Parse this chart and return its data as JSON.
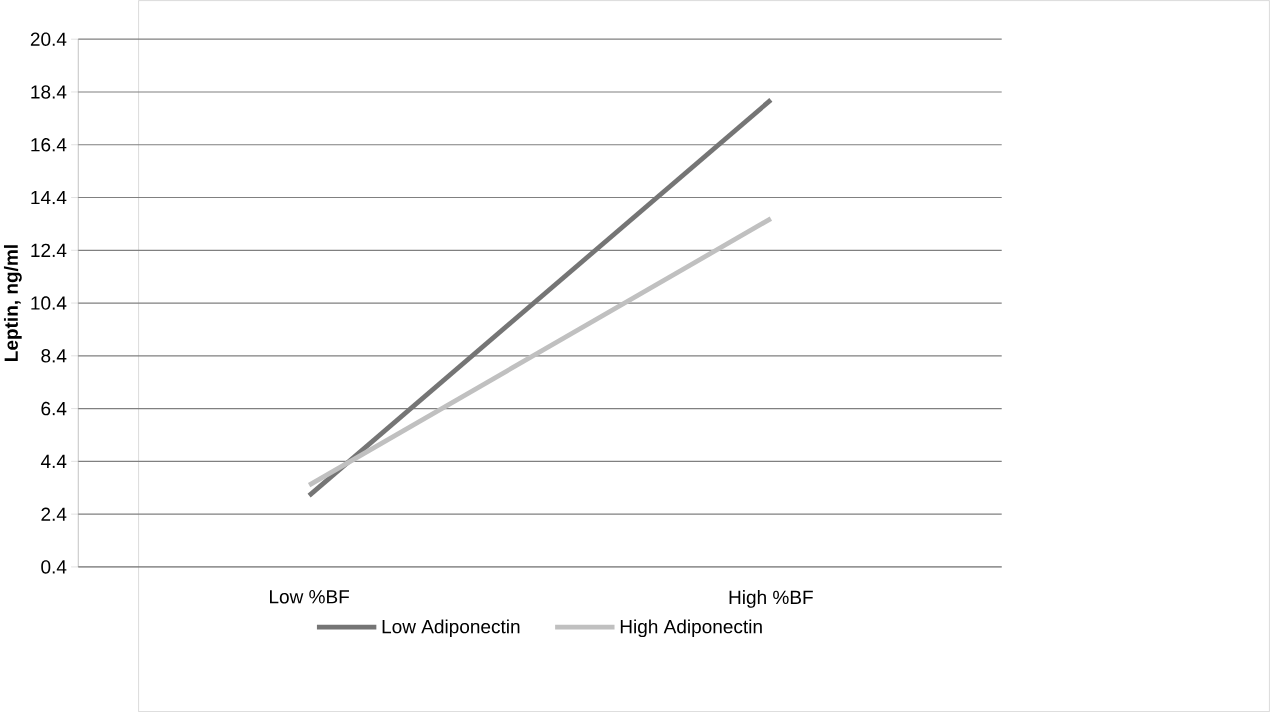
{
  "chart_data": {
    "type": "line",
    "ylabel": "Leptin, ng/ml",
    "categories": [
      "Low %BF",
      "High %BF"
    ],
    "series": [
      {
        "name": "Low Adiponectin",
        "color": "#757575",
        "values": [
          3.1,
          18.1
        ]
      },
      {
        "name": "High Adiponectin",
        "color": "#c0c0c0",
        "values": [
          3.5,
          13.6
        ]
      }
    ],
    "ylim": [
      0.4,
      20.4
    ],
    "yticks": [
      0.4,
      2.4,
      4.4,
      6.4,
      8.4,
      10.4,
      12.4,
      14.4,
      16.4,
      18.4,
      20.4
    ],
    "grid": "y",
    "legend": "bottom",
    "marker": "none",
    "line_style": "solid"
  }
}
